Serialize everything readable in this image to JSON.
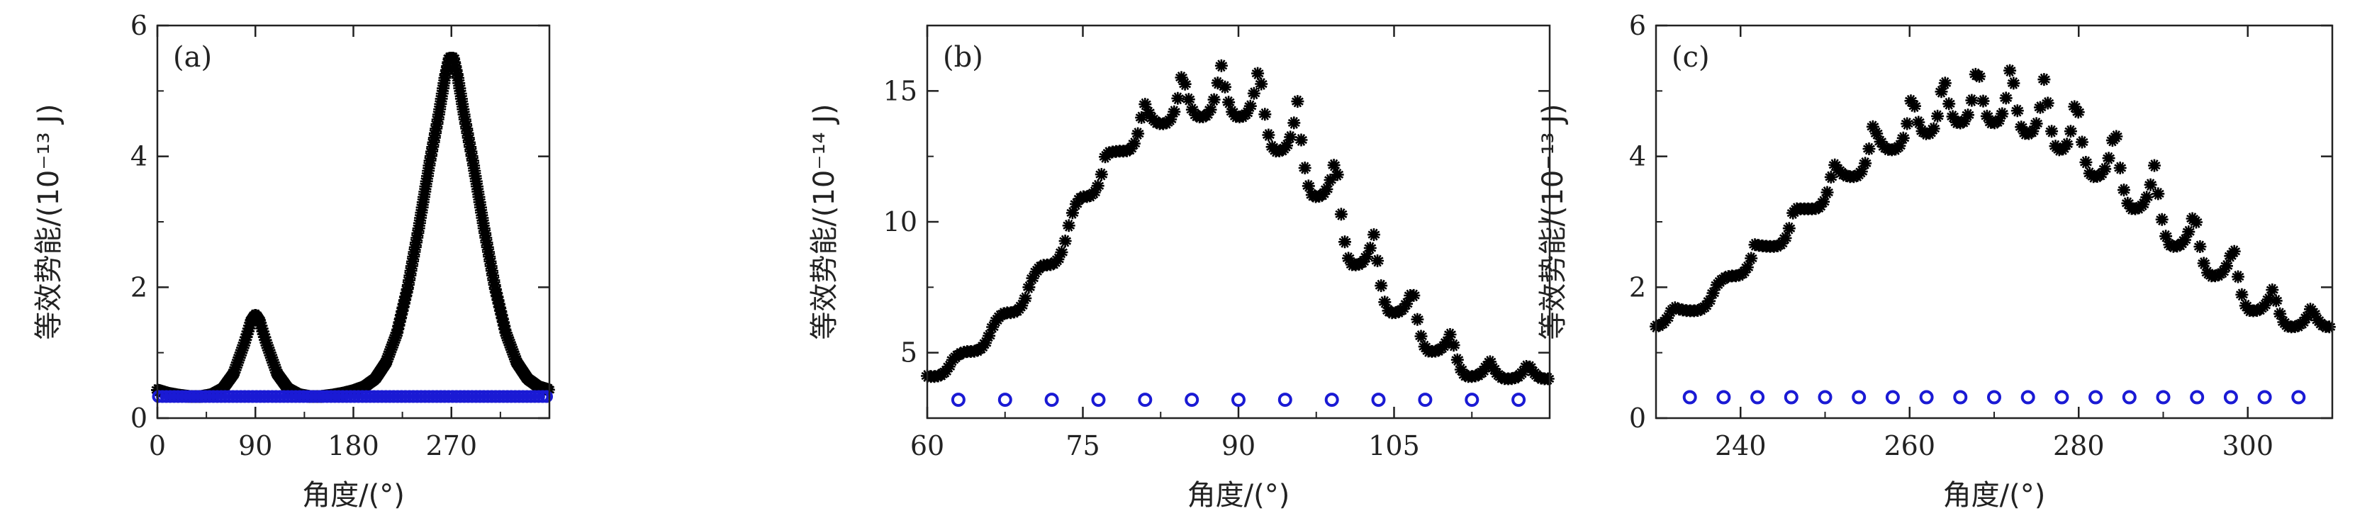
{
  "chart_data": [
    {
      "type": "scatter",
      "panel_label": "(a)",
      "xlabel": "角度/(°)",
      "ylabel": "等效势能/(10⁻¹³ J)",
      "xlim": [
        0,
        360
      ],
      "ylim": [
        0,
        6
      ],
      "xticks": [
        0,
        90,
        180,
        270
      ],
      "yticks": [
        0,
        2,
        4,
        6
      ],
      "grid": false,
      "series": [
        {
          "marker": "star",
          "color": "#000000",
          "kind": "dense",
          "envelope": [
            [
              0,
              0.43
            ],
            [
              10,
              0.38
            ],
            [
              20,
              0.35
            ],
            [
              30,
              0.33
            ],
            [
              40,
              0.33
            ],
            [
              50,
              0.36
            ],
            [
              60,
              0.45
            ],
            [
              70,
              0.68
            ],
            [
              80,
              1.15
            ],
            [
              86,
              1.48
            ],
            [
              90,
              1.58
            ],
            [
              94,
              1.48
            ],
            [
              100,
              1.15
            ],
            [
              110,
              0.68
            ],
            [
              120,
              0.45
            ],
            [
              130,
              0.36
            ],
            [
              140,
              0.33
            ],
            [
              150,
              0.33
            ],
            [
              160,
              0.35
            ],
            [
              170,
              0.38
            ],
            [
              180,
              0.42
            ],
            [
              190,
              0.48
            ],
            [
              200,
              0.6
            ],
            [
              210,
              0.85
            ],
            [
              220,
              1.3
            ],
            [
              230,
              2.0
            ],
            [
              240,
              2.9
            ],
            [
              250,
              3.9
            ],
            [
              258,
              4.6
            ],
            [
              264,
              5.2
            ],
            [
              268,
              5.5
            ],
            [
              272,
              5.5
            ],
            [
              276,
              5.2
            ],
            [
              282,
              4.6
            ],
            [
              290,
              3.9
            ],
            [
              300,
              2.9
            ],
            [
              310,
              2.0
            ],
            [
              320,
              1.3
            ],
            [
              330,
              0.85
            ],
            [
              340,
              0.6
            ],
            [
              350,
              0.48
            ],
            [
              360,
              0.43
            ]
          ]
        },
        {
          "marker": "circle",
          "color": "#1a1ad4",
          "kind": "flat",
          "y": 0.33,
          "x_start": 1,
          "x_end": 358,
          "step": 3.6
        }
      ]
    },
    {
      "type": "scatter",
      "panel_label": "(b)",
      "xlabel": "角度/(°)",
      "ylabel": "等效势能/(10⁻¹⁴ J)",
      "xlim": [
        60,
        120
      ],
      "ylim": [
        2.5,
        17.5
      ],
      "xticks": [
        60,
        75,
        90,
        105
      ],
      "yticks": [
        5,
        10,
        15
      ],
      "grid": false,
      "series": [
        {
          "marker": "star",
          "color": "#000000",
          "kind": "scalloped",
          "peaks": [
            [
              62.4,
              4.7
            ],
            [
              66.1,
              5.8
            ],
            [
              69.8,
              7.5
            ],
            [
              73.5,
              9.6
            ],
            [
              77.2,
              12.6
            ],
            [
              80.9,
              14.6
            ],
            [
              84.6,
              15.8
            ],
            [
              88.3,
              16.1
            ],
            [
              92.0,
              16.1
            ],
            [
              95.7,
              14.6
            ],
            [
              99.4,
              12.6
            ],
            [
              103.1,
              9.6
            ],
            [
              106.8,
              7.5
            ],
            [
              110.5,
              5.8
            ],
            [
              114.2,
              4.7
            ],
            [
              117.9,
              4.6
            ]
          ],
          "min_ratio": 0.87,
          "x_start": 60,
          "x_end": 120,
          "step": 0.35
        },
        {
          "marker": "circle",
          "color": "#1a1ad4",
          "kind": "list",
          "x": [
            63.0,
            67.5,
            72.0,
            76.5,
            81.0,
            85.5,
            90.0,
            94.5,
            99.0,
            103.5,
            108.0,
            112.5,
            117.0
          ],
          "y": [
            3.2,
            3.2,
            3.2,
            3.2,
            3.2,
            3.2,
            3.2,
            3.2,
            3.2,
            3.2,
            3.2,
            3.2,
            3.2
          ]
        }
      ]
    },
    {
      "type": "scatter",
      "panel_label": "(c)",
      "xlabel": "角度/(°)",
      "ylabel": "等效势能/(10⁻¹³ J)",
      "xlim": [
        230,
        310
      ],
      "ylim": [
        0,
        6
      ],
      "xticks": [
        240,
        260,
        280,
        300
      ],
      "yticks": [
        0,
        2,
        4,
        6
      ],
      "grid": false,
      "series": [
        {
          "marker": "star",
          "color": "#000000",
          "kind": "scalloped",
          "peaks": [
            [
              232.0,
              1.7
            ],
            [
              237.0,
              2.0
            ],
            [
              241.7,
              2.65
            ],
            [
              246.3,
              3.2
            ],
            [
              251.0,
              3.9
            ],
            [
              255.7,
              4.5
            ],
            [
              260.3,
              5.0
            ],
            [
              264.0,
              5.3
            ],
            [
              268.0,
              5.5
            ],
            [
              272.0,
              5.5
            ],
            [
              276.0,
              5.3
            ],
            [
              279.7,
              5.0
            ],
            [
              284.3,
              4.5
            ],
            [
              289.0,
              3.9
            ],
            [
              293.7,
              3.2
            ],
            [
              298.3,
              2.65
            ],
            [
              303.0,
              2.0
            ],
            [
              307.5,
              1.7
            ]
          ],
          "min_ratio": 0.82,
          "x_start": 230,
          "x_end": 310,
          "step": 0.45
        },
        {
          "marker": "circle",
          "color": "#1a1ad4",
          "kind": "list",
          "x": [
            234,
            238,
            242,
            246,
            250,
            254,
            258,
            262,
            266,
            270,
            274,
            278,
            282,
            286,
            290,
            294,
            298,
            302,
            306
          ],
          "y": [
            0.32,
            0.32,
            0.32,
            0.32,
            0.32,
            0.32,
            0.32,
            0.32,
            0.32,
            0.32,
            0.32,
            0.32,
            0.32,
            0.32,
            0.32,
            0.32,
            0.32,
            0.32,
            0.32
          ]
        }
      ]
    }
  ]
}
